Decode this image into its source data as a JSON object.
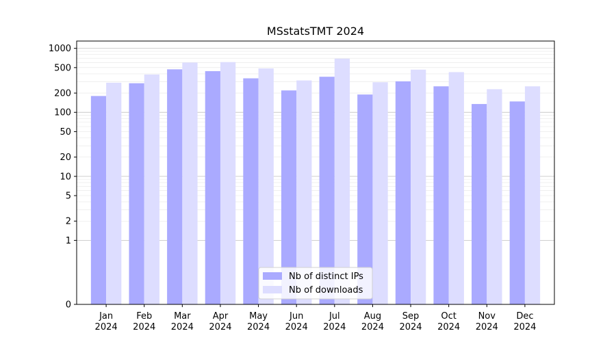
{
  "chart_data": {
    "type": "bar",
    "title": "MSstatsTMT 2024",
    "xlabel": "",
    "ylabel": "",
    "yscale": "symlog",
    "ylim": [
      0,
      1300
    ],
    "grid": {
      "major": true,
      "minor": true
    },
    "legend_position": "bottom-center",
    "y_ticks": [
      {
        "value": 0,
        "label": "0"
      },
      {
        "value": 1,
        "label": "1"
      },
      {
        "value": 2,
        "label": "2"
      },
      {
        "value": 5,
        "label": "5"
      },
      {
        "value": 10,
        "label": "10"
      },
      {
        "value": 20,
        "label": "20"
      },
      {
        "value": 50,
        "label": "50"
      },
      {
        "value": 100,
        "label": "100"
      },
      {
        "value": 200,
        "label": "200"
      },
      {
        "value": 500,
        "label": "500"
      },
      {
        "value": 1000,
        "label": "1000"
      }
    ],
    "categories": [
      {
        "month": "Jan",
        "year": "2024"
      },
      {
        "month": "Feb",
        "year": "2024"
      },
      {
        "month": "Mar",
        "year": "2024"
      },
      {
        "month": "Apr",
        "year": "2024"
      },
      {
        "month": "May",
        "year": "2024"
      },
      {
        "month": "Jun",
        "year": "2024"
      },
      {
        "month": "Jul",
        "year": "2024"
      },
      {
        "month": "Aug",
        "year": "2024"
      },
      {
        "month": "Sep",
        "year": "2024"
      },
      {
        "month": "Oct",
        "year": "2024"
      },
      {
        "month": "Nov",
        "year": "2024"
      },
      {
        "month": "Dec",
        "year": "2024"
      }
    ],
    "series": [
      {
        "name": "Nb of distinct IPs",
        "color": "#aaaaff",
        "values": [
          180,
          285,
          470,
          440,
          340,
          220,
          360,
          190,
          305,
          255,
          135,
          148
        ]
      },
      {
        "name": "Nb of downloads",
        "color": "#ddddff",
        "values": [
          290,
          390,
          600,
          610,
          485,
          315,
          690,
          295,
          465,
          425,
          230,
          255
        ]
      }
    ]
  }
}
